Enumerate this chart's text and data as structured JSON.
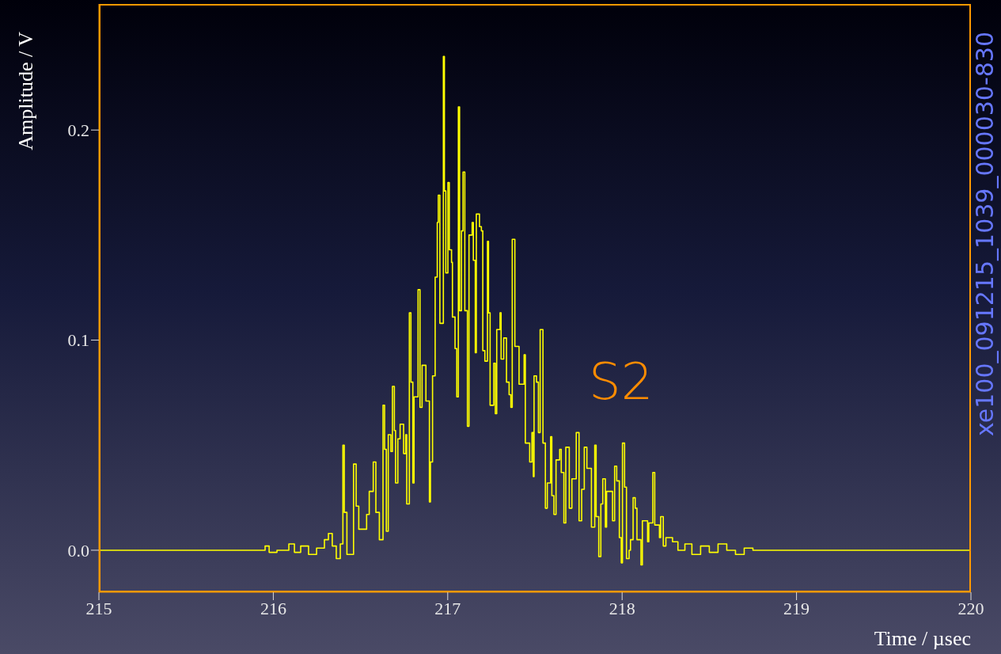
{
  "chart_data": {
    "type": "step",
    "xlabel": "Time / µsec",
    "ylabel": "Amplitude / V",
    "annotations": [
      "S2",
      "xe100_091215_1039_000030-830"
    ],
    "xlim": [
      215,
      220
    ],
    "xticks": [
      215,
      216,
      217,
      218,
      219,
      220
    ],
    "ylim": [
      -0.02,
      0.26
    ],
    "yticks": [
      {
        "value": 0,
        "label": "0.0"
      },
      {
        "value": 0.1,
        "label": "0.1"
      },
      {
        "value": 0.2,
        "label": "0.2"
      }
    ],
    "x": [
      215.0,
      215.953,
      215.976,
      216.021,
      216.089,
      216.121,
      216.157,
      216.202,
      216.248,
      216.293,
      216.316,
      216.338,
      216.361,
      216.384,
      216.399,
      216.407,
      216.422,
      216.46,
      216.475,
      216.49,
      216.535,
      216.55,
      216.573,
      216.588,
      216.608,
      216.629,
      216.638,
      216.648,
      216.659,
      216.674,
      216.683,
      216.694,
      216.701,
      216.714,
      216.727,
      216.747,
      216.759,
      216.765,
      216.78,
      216.789,
      216.8,
      216.807,
      216.83,
      216.841,
      216.853,
      216.875,
      216.895,
      216.901,
      216.913,
      216.928,
      216.94,
      216.946,
      216.955,
      216.975,
      216.981,
      216.989,
      217.001,
      217.009,
      217.022,
      217.027,
      217.042,
      217.052,
      217.061,
      217.068,
      217.079,
      217.088,
      217.098,
      217.113,
      217.122,
      217.14,
      217.147,
      217.158,
      217.164,
      217.182,
      217.193,
      217.201,
      217.213,
      217.228,
      217.234,
      217.243,
      217.264,
      217.273,
      217.281,
      217.3,
      217.306,
      217.321,
      217.337,
      217.352,
      217.362,
      217.37,
      217.385,
      217.409,
      217.438,
      217.445,
      217.47,
      217.483,
      217.491,
      217.495,
      217.509,
      217.52,
      217.53,
      217.546,
      217.56,
      217.571,
      217.59,
      217.597,
      217.609,
      217.621,
      217.642,
      217.651,
      217.666,
      217.677,
      217.697,
      217.712,
      217.737,
      217.753,
      217.768,
      217.783,
      217.798,
      217.824,
      217.843,
      217.851,
      217.866,
      217.878,
      217.889,
      217.904,
      217.911,
      217.945,
      217.957,
      217.969,
      217.984,
      217.995,
      218.002,
      218.014,
      218.025,
      218.04,
      218.048,
      218.063,
      218.075,
      218.085,
      218.108,
      218.116,
      218.146,
      218.153,
      218.176,
      218.187,
      218.214,
      218.221,
      218.236,
      218.251,
      218.289,
      218.32,
      218.36,
      218.4,
      218.45,
      218.5,
      218.55,
      218.6,
      218.65,
      218.7,
      218.75,
      220.0
    ],
    "series": [
      {
        "color": "#ffff00",
        "values": [
          0.0,
          0.002,
          -0.001,
          0.0,
          0.003,
          -0.001,
          0.002,
          -0.002,
          0.001,
          0.005,
          0.008,
          0.002,
          -0.004,
          0.003,
          0.05,
          0.018,
          -0.002,
          0.041,
          0.021,
          0.01,
          0.017,
          0.028,
          0.042,
          0.018,
          0.005,
          0.069,
          0.048,
          0.009,
          0.055,
          0.047,
          0.078,
          0.057,
          0.032,
          0.053,
          0.06,
          0.046,
          0.055,
          0.022,
          0.113,
          0.08,
          0.032,
          0.073,
          0.124,
          0.068,
          0.088,
          0.071,
          0.023,
          0.042,
          0.083,
          0.13,
          0.156,
          0.169,
          0.108,
          0.235,
          0.171,
          0.132,
          0.175,
          0.143,
          0.137,
          0.111,
          0.096,
          0.073,
          0.211,
          0.114,
          0.152,
          0.18,
          0.114,
          0.059,
          0.15,
          0.156,
          0.138,
          0.094,
          0.16,
          0.154,
          0.152,
          0.095,
          0.09,
          0.147,
          0.113,
          0.069,
          0.089,
          0.065,
          0.105,
          0.113,
          0.091,
          0.101,
          0.08,
          0.074,
          0.068,
          0.148,
          0.097,
          0.079,
          0.093,
          0.051,
          0.042,
          0.056,
          0.035,
          0.083,
          0.08,
          0.056,
          0.105,
          0.051,
          0.02,
          0.032,
          0.054,
          0.026,
          0.017,
          0.043,
          0.048,
          0.037,
          0.013,
          0.049,
          0.02,
          0.034,
          0.056,
          0.014,
          0.029,
          0.049,
          0.039,
          0.011,
          0.05,
          0.016,
          -0.003,
          0.022,
          0.034,
          0.011,
          0.028,
          0.014,
          0.04,
          0.033,
          0.006,
          -0.006,
          0.051,
          0.03,
          -0.004,
          0.0,
          0.005,
          0.025,
          0.02,
          0.005,
          -0.007,
          0.014,
          0.004,
          0.013,
          0.037,
          0.012,
          0.006,
          0.016,
          0.002,
          0.006,
          0.004,
          0.0,
          0.003,
          -0.002,
          0.002,
          -0.001,
          0.003,
          0.0,
          -0.002,
          0.001,
          0.0,
          0.0
        ]
      }
    ]
  }
}
